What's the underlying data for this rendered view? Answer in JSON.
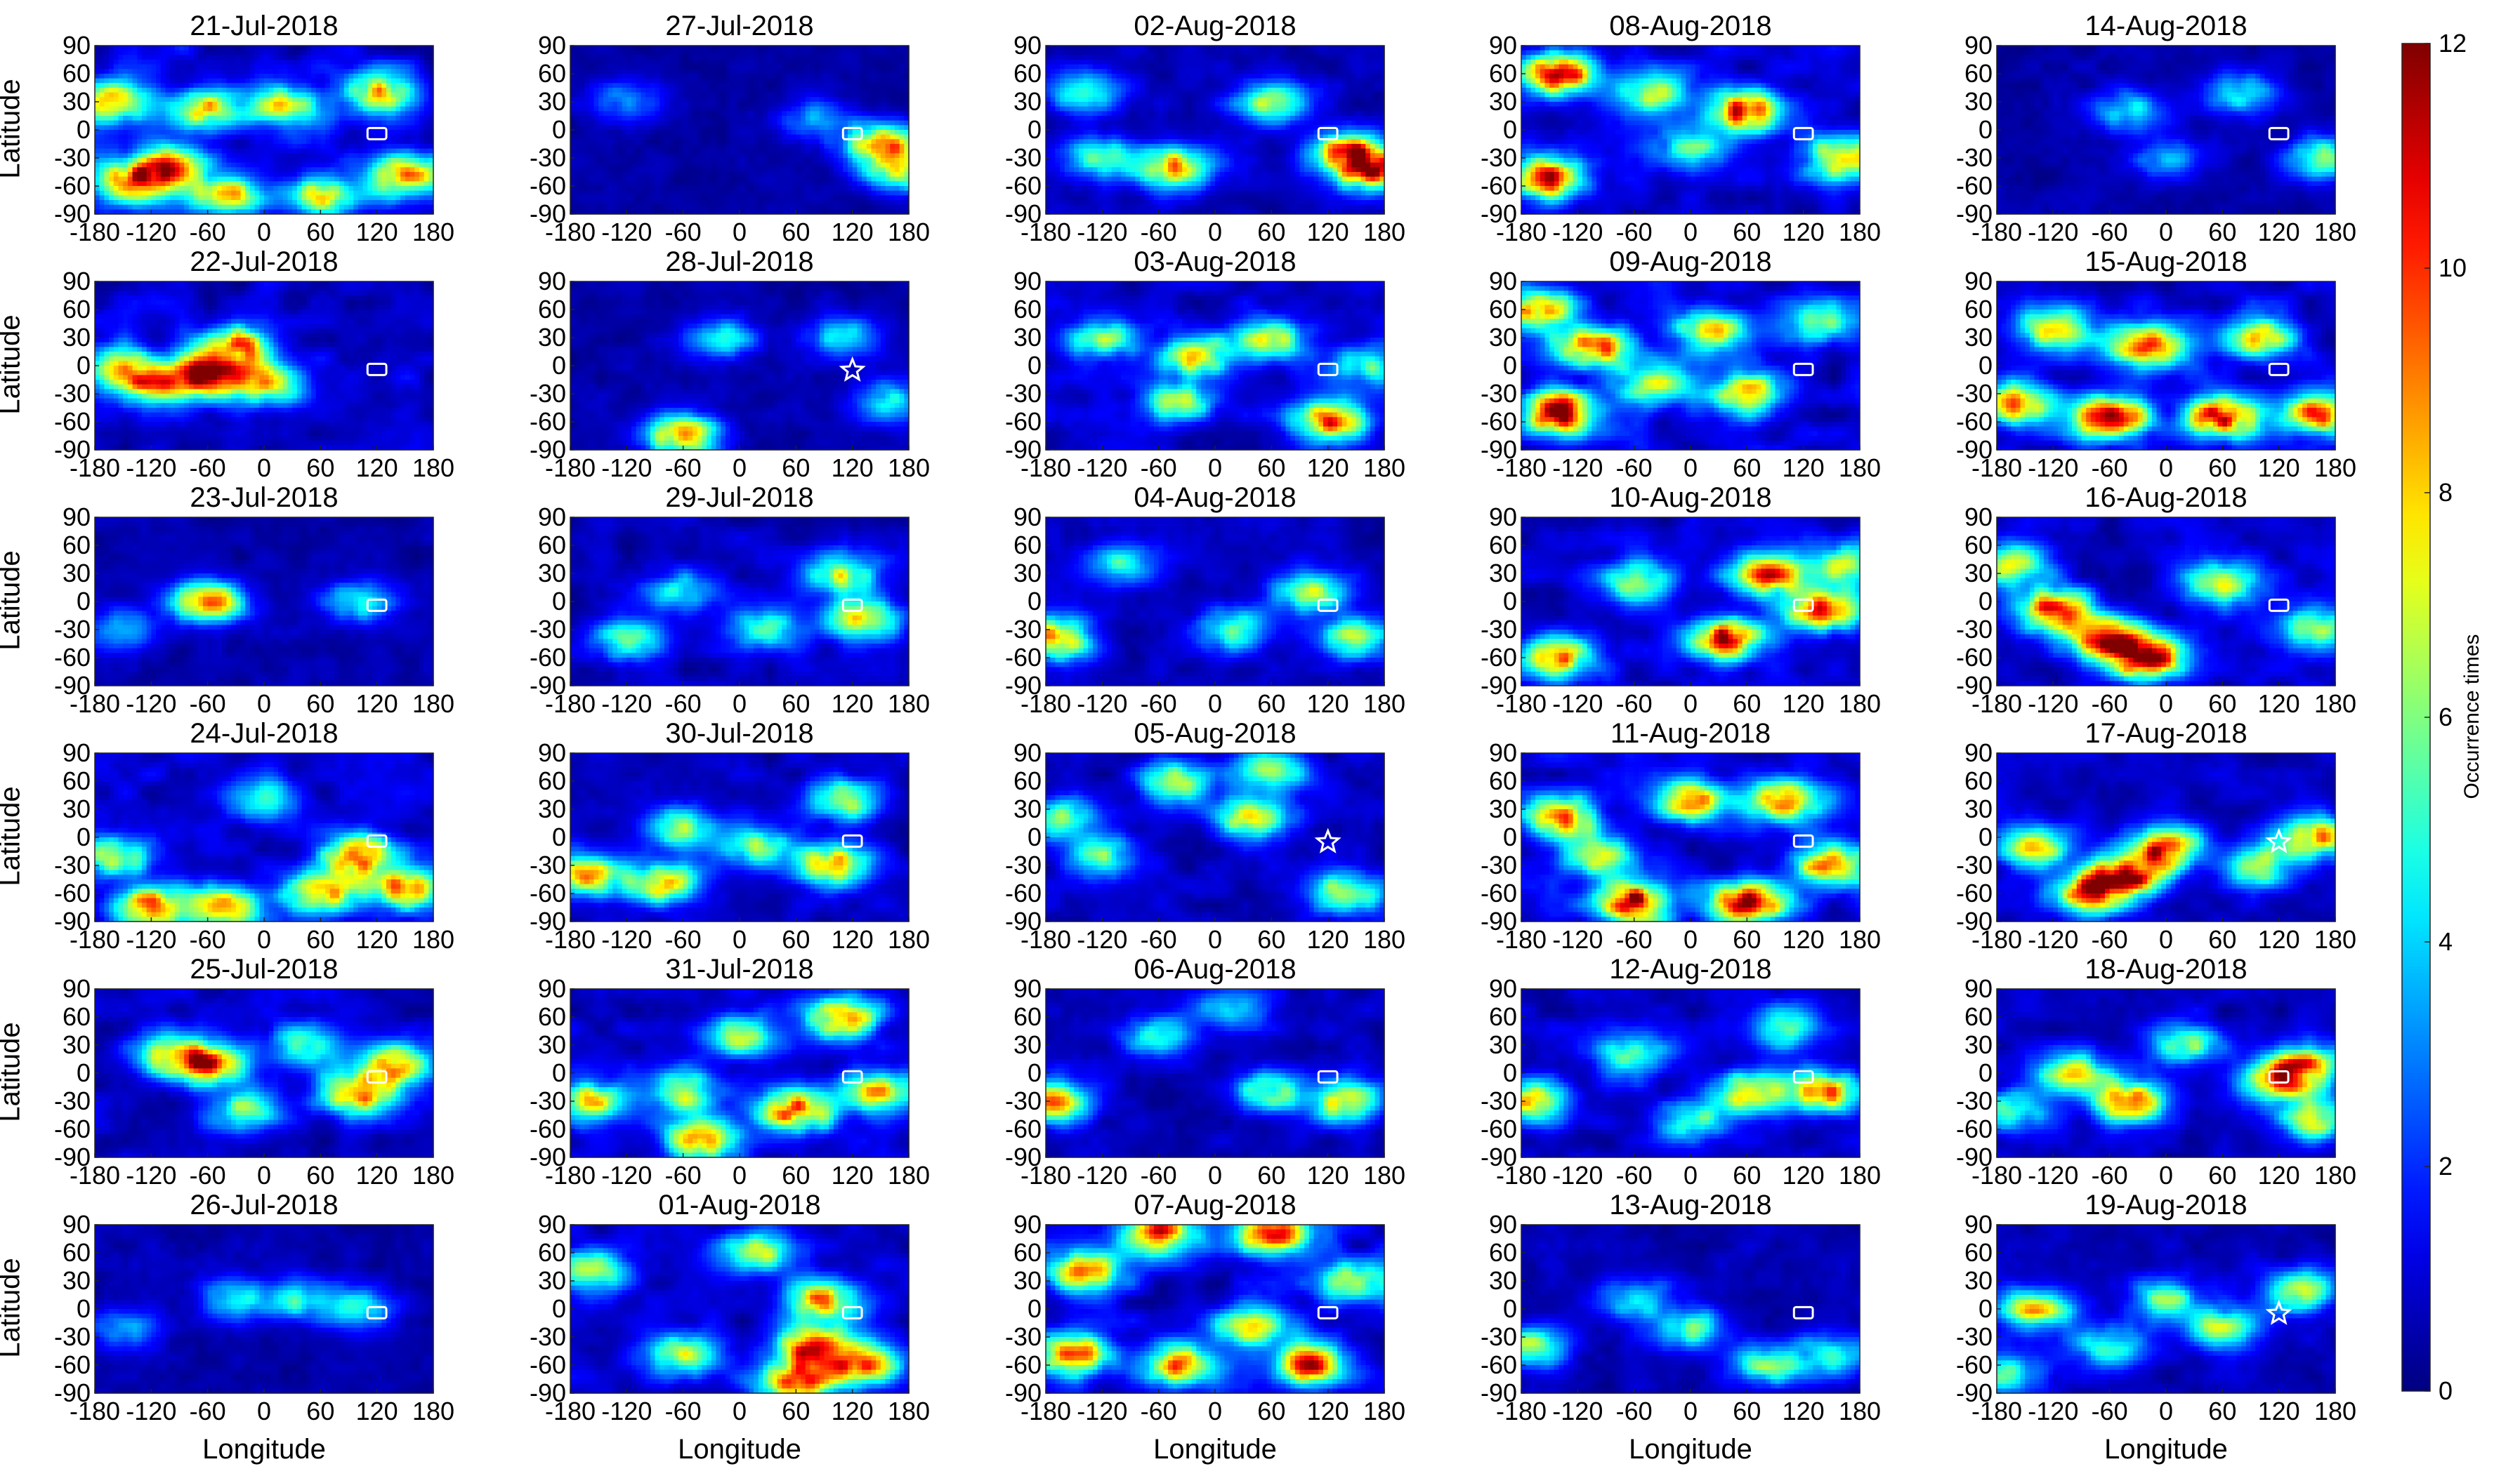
{
  "chart_data": {
    "type": "heatmap",
    "layout": {
      "rows": 6,
      "cols": 5
    },
    "xlabel": "Longitude",
    "ylabel": "Latitude",
    "xlim": [
      -180,
      180
    ],
    "ylim": [
      -90,
      90
    ],
    "xticks": [
      "-180",
      "-120",
      "-60",
      "0",
      "60",
      "120",
      "180"
    ],
    "xtick_values": [
      -180,
      -120,
      -60,
      0,
      60,
      120,
      180
    ],
    "yticks": [
      "90",
      "60",
      "30",
      "0",
      "-30",
      "-60",
      "-90"
    ],
    "ytick_values": [
      90,
      60,
      30,
      0,
      -30,
      -60,
      -90
    ],
    "colormap": "jet",
    "colorbar": {
      "label": "Occurrence times",
      "min": 0,
      "max": 12,
      "ticks": [
        "0",
        "2",
        "4",
        "6",
        "8",
        "10",
        "12"
      ],
      "tick_values": [
        0,
        2,
        4,
        6,
        8,
        10,
        12
      ]
    },
    "rectangle_marker": {
      "lon_range": [
        110,
        130
      ],
      "lat_range": [
        -10,
        2
      ],
      "color": "#ffffff"
    },
    "star_marker_lon_lat": [
      120,
      -5
    ],
    "panels": [
      {
        "title": "21-Jul-2018",
        "marker": "rect",
        "level": 0.55,
        "hotspots": [
          [
            -140,
            -55,
            9
          ],
          [
            -100,
            -40,
            8
          ],
          [
            -160,
            30,
            7
          ],
          [
            -60,
            20,
            7
          ],
          [
            20,
            25,
            6
          ],
          [
            150,
            -50,
            8
          ],
          [
            120,
            40,
            7
          ],
          [
            -40,
            -70,
            7
          ],
          [
            60,
            -70,
            6
          ]
        ]
      },
      {
        "title": "22-Jul-2018",
        "marker": "rect",
        "level": 0.45,
        "hotspots": [
          [
            -60,
            -10,
            10
          ],
          [
            -120,
            -20,
            7
          ],
          [
            -30,
            20,
            8
          ],
          [
            0,
            -20,
            7
          ],
          [
            -160,
            0,
            6
          ]
        ]
      },
      {
        "title": "23-Jul-2018",
        "marker": "rect",
        "level": 0.2,
        "hotspots": [
          [
            -60,
            0,
            8
          ],
          [
            100,
            0,
            4
          ],
          [
            -150,
            -30,
            3
          ]
        ]
      },
      {
        "title": "24-Jul-2018",
        "marker": "rect",
        "level": 0.45,
        "hotspots": [
          [
            -120,
            -75,
            9
          ],
          [
            -40,
            -75,
            8
          ],
          [
            60,
            -60,
            8
          ],
          [
            100,
            -20,
            9
          ],
          [
            150,
            -55,
            8
          ],
          [
            -160,
            -20,
            6
          ],
          [
            0,
            40,
            4
          ]
        ]
      },
      {
        "title": "25-Jul-2018",
        "marker": "rect",
        "level": 0.4,
        "hotspots": [
          [
            -60,
            10,
            9
          ],
          [
            100,
            -20,
            9
          ],
          [
            140,
            10,
            7
          ],
          [
            -100,
            20,
            5
          ],
          [
            40,
            30,
            5
          ],
          [
            -20,
            -40,
            5
          ]
        ]
      },
      {
        "title": "26-Jul-2018",
        "marker": "rect",
        "level": 0.2,
        "hotspots": [
          [
            40,
            10,
            4
          ],
          [
            100,
            0,
            4
          ],
          [
            -30,
            10,
            4
          ],
          [
            -150,
            -20,
            3
          ]
        ]
      },
      {
        "title": "27-Jul-2018",
        "marker": "rect",
        "level": 0.15,
        "hotspots": [
          [
            150,
            -15,
            8
          ],
          [
            80,
            10,
            3
          ],
          [
            -120,
            30,
            3
          ],
          [
            170,
            -45,
            6
          ]
        ]
      },
      {
        "title": "28-Jul-2018",
        "marker": "star",
        "level": 0.2,
        "hotspots": [
          [
            -60,
            -75,
            8
          ],
          [
            110,
            30,
            4
          ],
          [
            -20,
            30,
            4
          ],
          [
            160,
            -40,
            4
          ]
        ]
      },
      {
        "title": "29-Jul-2018",
        "marker": "rect",
        "level": 0.35,
        "hotspots": [
          [
            110,
            30,
            6
          ],
          [
            130,
            -20,
            7
          ],
          [
            30,
            -30,
            5
          ],
          [
            -120,
            -40,
            5
          ],
          [
            -60,
            10,
            4
          ]
        ]
      },
      {
        "title": "30-Jul-2018",
        "marker": "rect",
        "level": 0.35,
        "hotspots": [
          [
            -160,
            -40,
            8
          ],
          [
            -80,
            -50,
            7
          ],
          [
            100,
            -30,
            8
          ],
          [
            110,
            40,
            6
          ],
          [
            -60,
            10,
            5
          ],
          [
            20,
            -10,
            5
          ]
        ]
      },
      {
        "title": "31-Jul-2018",
        "marker": "rect",
        "level": 0.45,
        "hotspots": [
          [
            60,
            -40,
            9
          ],
          [
            110,
            60,
            8
          ],
          [
            -160,
            -30,
            7
          ],
          [
            -60,
            -20,
            6
          ],
          [
            0,
            40,
            6
          ],
          [
            150,
            -20,
            8
          ],
          [
            -40,
            -70,
            8
          ]
        ]
      },
      {
        "title": "01-Aug-2018",
        "marker": "rect",
        "level": 0.45,
        "hotspots": [
          [
            80,
            -40,
            10
          ],
          [
            90,
            10,
            8
          ],
          [
            -160,
            40,
            6
          ],
          [
            -60,
            -50,
            6
          ],
          [
            20,
            60,
            6
          ],
          [
            130,
            -60,
            8
          ],
          [
            60,
            -80,
            9
          ]
        ]
      },
      {
        "title": "02-Aug-2018",
        "marker": "rect",
        "level": 0.3,
        "hotspots": [
          [
            -40,
            -40,
            8
          ],
          [
            140,
            -25,
            9
          ],
          [
            170,
            -45,
            8
          ],
          [
            60,
            30,
            6
          ],
          [
            -140,
            40,
            5
          ],
          [
            -120,
            -30,
            5
          ]
        ]
      },
      {
        "title": "03-Aug-2018",
        "marker": "rect",
        "level": 0.4,
        "hotspots": [
          [
            120,
            -60,
            9
          ],
          [
            -20,
            10,
            7
          ],
          [
            60,
            30,
            6
          ],
          [
            -120,
            30,
            5
          ],
          [
            -40,
            -40,
            6
          ],
          [
            160,
            0,
            5
          ]
        ]
      },
      {
        "title": "04-Aug-2018",
        "marker": "rect",
        "level": 0.3,
        "hotspots": [
          [
            -170,
            -40,
            8
          ],
          [
            100,
            10,
            6
          ],
          [
            20,
            -30,
            5
          ],
          [
            -100,
            40,
            4
          ],
          [
            150,
            -40,
            6
          ]
        ]
      },
      {
        "title": "05-Aug-2018",
        "marker": "star",
        "level": 0.35,
        "hotspots": [
          [
            40,
            20,
            7
          ],
          [
            -40,
            60,
            6
          ],
          [
            60,
            70,
            6
          ],
          [
            -120,
            -20,
            5
          ],
          [
            140,
            -60,
            6
          ],
          [
            -160,
            20,
            5
          ]
        ]
      },
      {
        "title": "06-Aug-2018",
        "marker": "rect",
        "level": 0.3,
        "hotspots": [
          [
            -170,
            -30,
            8
          ],
          [
            140,
            -30,
            7
          ],
          [
            60,
            -20,
            5
          ],
          [
            -60,
            40,
            4
          ],
          [
            20,
            70,
            4
          ]
        ]
      },
      {
        "title": "07-Aug-2018",
        "marker": "rect",
        "level": 0.55,
        "hotspots": [
          [
            -60,
            80,
            9
          ],
          [
            60,
            80,
            9
          ],
          [
            -140,
            40,
            8
          ],
          [
            -150,
            -50,
            9
          ],
          [
            -40,
            -60,
            8
          ],
          [
            100,
            -60,
            9
          ],
          [
            40,
            -20,
            7
          ],
          [
            150,
            30,
            6
          ]
        ]
      },
      {
        "title": "08-Aug-2018",
        "marker": "rect",
        "level": 0.45,
        "hotspots": [
          [
            -140,
            60,
            11
          ],
          [
            -150,
            -50,
            10
          ],
          [
            60,
            20,
            10
          ],
          [
            -40,
            40,
            6
          ],
          [
            160,
            -30,
            8
          ],
          [
            0,
            -20,
            5
          ]
        ]
      },
      {
        "title": "09-Aug-2018",
        "marker": "rect",
        "level": 0.55,
        "hotspots": [
          [
            -140,
            -50,
            11
          ],
          [
            -100,
            20,
            9
          ],
          [
            60,
            -30,
            8
          ],
          [
            -160,
            60,
            8
          ],
          [
            140,
            50,
            6
          ],
          [
            20,
            40,
            7
          ],
          [
            -40,
            -20,
            7
          ]
        ]
      },
      {
        "title": "10-Aug-2018",
        "marker": "rect",
        "level": 0.45,
        "hotspots": [
          [
            40,
            -40,
            10
          ],
          [
            80,
            30,
            9
          ],
          [
            -140,
            -60,
            8
          ],
          [
            -60,
            20,
            6
          ],
          [
            140,
            -10,
            9
          ],
          [
            160,
            40,
            6
          ]
        ]
      },
      {
        "title": "11-Aug-2018",
        "marker": "rect",
        "level": 0.55,
        "hotspots": [
          [
            -60,
            -70,
            11
          ],
          [
            60,
            -70,
            11
          ],
          [
            -140,
            20,
            9
          ],
          [
            0,
            40,
            8
          ],
          [
            100,
            40,
            8
          ],
          [
            150,
            -30,
            9
          ],
          [
            -100,
            -20,
            6
          ]
        ]
      },
      {
        "title": "12-Aug-2018",
        "marker": "rect",
        "level": 0.4,
        "hotspots": [
          [
            -170,
            -30,
            8
          ],
          [
            60,
            -20,
            7
          ],
          [
            140,
            -20,
            8
          ],
          [
            -60,
            20,
            5
          ],
          [
            0,
            -50,
            5
          ],
          [
            100,
            50,
            5
          ]
        ]
      },
      {
        "title": "13-Aug-2018",
        "marker": "rect",
        "level": 0.25,
        "hotspots": [
          [
            -170,
            -40,
            6
          ],
          [
            0,
            -20,
            5
          ],
          [
            -60,
            10,
            4
          ],
          [
            80,
            -60,
            5
          ],
          [
            150,
            -50,
            5
          ]
        ]
      },
      {
        "title": "14-Aug-2018",
        "marker": "rect",
        "level": 0.2,
        "hotspots": [
          [
            -40,
            20,
            4
          ],
          [
            80,
            40,
            4
          ],
          [
            170,
            -30,
            6
          ],
          [
            0,
            -30,
            3
          ]
        ]
      },
      {
        "title": "15-Aug-2018",
        "marker": "rect",
        "level": 0.55,
        "hotspots": [
          [
            -60,
            -55,
            11
          ],
          [
            60,
            -55,
            10
          ],
          [
            -20,
            20,
            9
          ],
          [
            -160,
            -40,
            8
          ],
          [
            160,
            -50,
            9
          ],
          [
            100,
            30,
            7
          ],
          [
            -120,
            40,
            7
          ]
        ]
      },
      {
        "title": "16-Aug-2018",
        "marker": "rect",
        "level": 0.45,
        "hotspots": [
          [
            -60,
            -40,
            11
          ],
          [
            -120,
            -10,
            10
          ],
          [
            -20,
            -60,
            11
          ],
          [
            -160,
            40,
            7
          ],
          [
            60,
            20,
            6
          ],
          [
            160,
            -30,
            6
          ]
        ]
      },
      {
        "title": "17-Aug-2018",
        "marker": "star",
        "level": 0.35,
        "hotspots": [
          [
            -40,
            -40,
            10
          ],
          [
            -80,
            -60,
            9
          ],
          [
            0,
            -10,
            9
          ],
          [
            160,
            0,
            8
          ],
          [
            -140,
            -10,
            7
          ],
          [
            100,
            -30,
            6
          ]
        ]
      },
      {
        "title": "18-Aug-2018",
        "marker": "rect",
        "level": 0.35,
        "hotspots": [
          [
            -40,
            -30,
            9
          ],
          [
            -100,
            0,
            7
          ],
          [
            120,
            -10,
            8
          ],
          [
            150,
            10,
            7
          ],
          [
            20,
            30,
            5
          ],
          [
            -160,
            -40,
            5
          ],
          [
            160,
            -50,
            6
          ]
        ]
      },
      {
        "title": "19-Aug-2018",
        "marker": "star",
        "level": 0.3,
        "hotspots": [
          [
            -140,
            0,
            7
          ],
          [
            60,
            -20,
            6
          ],
          [
            140,
            20,
            6
          ],
          [
            -60,
            -40,
            5
          ],
          [
            0,
            10,
            5
          ],
          [
            -170,
            -70,
            5
          ]
        ]
      }
    ]
  }
}
